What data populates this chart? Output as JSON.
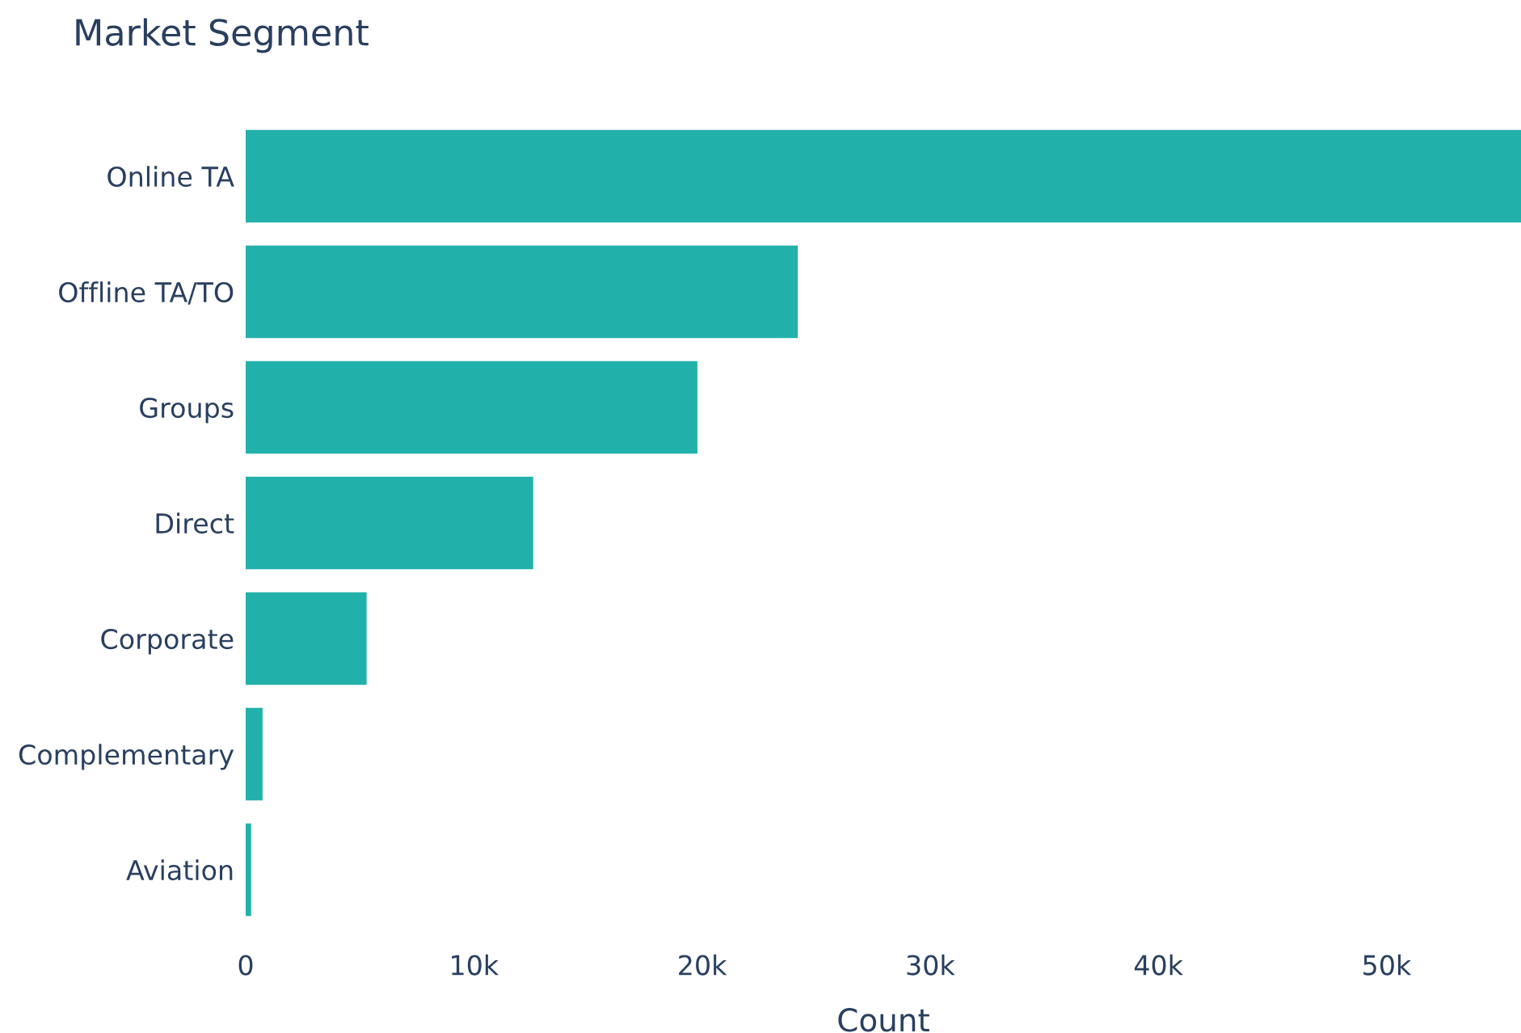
{
  "chart_data": {
    "type": "bar",
    "orientation": "horizontal",
    "title": "Market Segment",
    "xlabel": "Count",
    "categories": [
      "Online TA",
      "Offline TA/TO",
      "Groups",
      "Direct",
      "Corporate",
      "Complementary",
      "Aviation"
    ],
    "values": [
      55900,
      24200,
      19800,
      12600,
      5300,
      740,
      240
    ],
    "color": "#22b1aa",
    "xlim": [
      0,
      55900
    ],
    "xticks": [
      0,
      {
        "value": 10000,
        "label": "10k"
      },
      {
        "value": 20000,
        "label": "20k"
      },
      {
        "value": 30000,
        "label": "30k"
      },
      {
        "value": 40000,
        "label": "40k"
      },
      {
        "value": 50000,
        "label": "50k"
      }
    ],
    "grid": false,
    "legend": false
  }
}
